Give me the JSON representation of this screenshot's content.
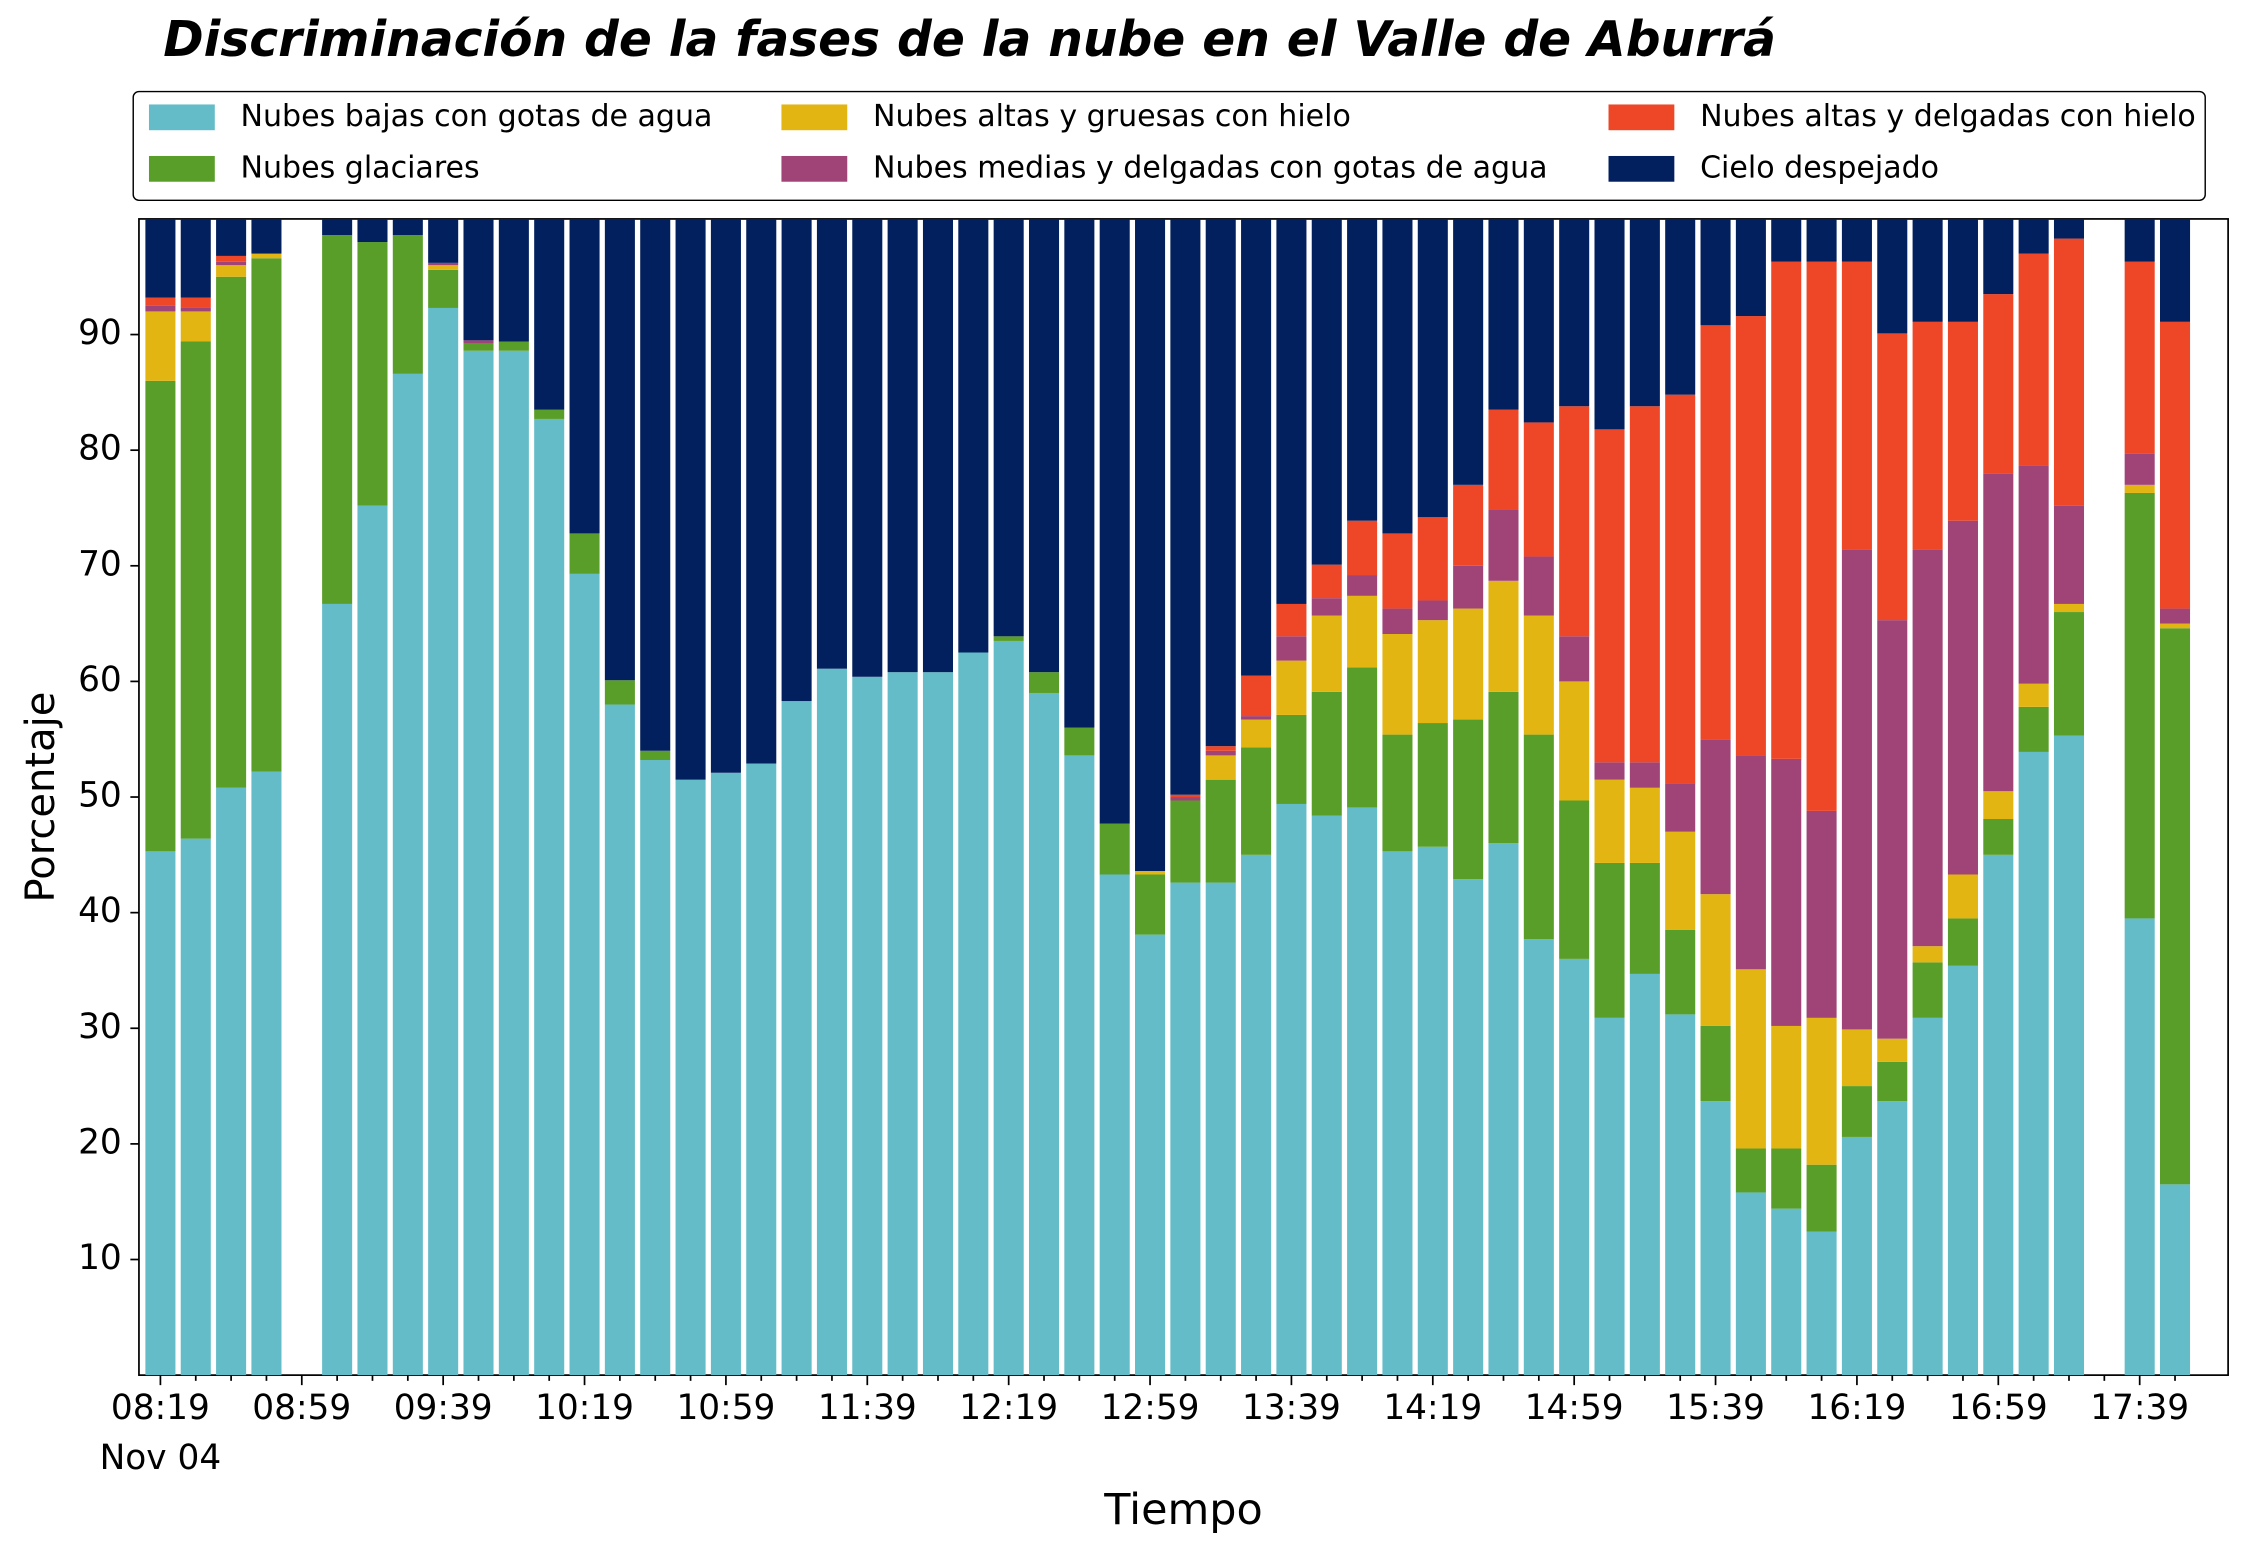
{
  "chart_data": {
    "type": "stacked_bar",
    "title": "Discriminación de la fases de la nube en el Valle de Aburrá",
    "xlabel": "Tiempo",
    "ylabel": "Porcentaje",
    "date_label": "Nov 04",
    "categories": [
      "08:19",
      null,
      null,
      null,
      "08:59",
      null,
      null,
      null,
      "09:39",
      null,
      null,
      null,
      "10:19",
      null,
      null,
      null,
      "10:59",
      null,
      null,
      null,
      "11:39",
      null,
      null,
      null,
      "12:19",
      null,
      null,
      null,
      "12:59",
      null,
      null,
      null,
      "13:39",
      null,
      null,
      null,
      "14:19",
      null,
      null,
      null,
      "14:59",
      null,
      null,
      null,
      "15:39",
      null,
      null,
      null,
      "16:19",
      null,
      null,
      null,
      "16:59",
      null,
      null,
      null,
      "17:39",
      null
    ],
    "ylim": [
      0,
      100
    ],
    "yticks": [
      10,
      20,
      30,
      40,
      50,
      60,
      70,
      80,
      90
    ],
    "series": [
      {
        "name": "Nubes bajas con gotas de agua",
        "color": "#63bcc8",
        "values": [
          45.3,
          46.4,
          50.8,
          52.2,
          null,
          66.7,
          75.2,
          86.6,
          92.3,
          88.6,
          88.6,
          82.7,
          69.3,
          58,
          53.2,
          51.5,
          52.1,
          52.9,
          58.3,
          61.1,
          60.4,
          60.8,
          60.8,
          62.5,
          63.5,
          59,
          53.6,
          43.3,
          38.1,
          42.6,
          42.6,
          45,
          49.4,
          48.4,
          49.1,
          45.3,
          45.7,
          42.9,
          46,
          37.7,
          36,
          30.9,
          34.7,
          31.2,
          23.7,
          15.8,
          14.4,
          12.4,
          20.6,
          23.7,
          30.9,
          35.4,
          45,
          53.9,
          55.3,
          null,
          39.5,
          16.5
        ]
      },
      {
        "name": "Nubes glaciares",
        "color": "#5a9e2a",
        "values": [
          40.7,
          43,
          44.2,
          44.4,
          null,
          31.9,
          22.8,
          12,
          3.3,
          0.6,
          0.8,
          0.8,
          3.5,
          2.1,
          0.8,
          0,
          0,
          0,
          0,
          0,
          0,
          0,
          0,
          0,
          0.4,
          1.8,
          2.4,
          4.4,
          5.2,
          7.1,
          8.9,
          9.3,
          7.7,
          10.7,
          12.1,
          10.1,
          10.7,
          13.8,
          13.1,
          17.7,
          13.7,
          13.4,
          9.6,
          7.3,
          6.5,
          3.8,
          5.2,
          5.8,
          4.4,
          3.4,
          4.8,
          4.1,
          3.1,
          3.9,
          10.7,
          null,
          36.8,
          48.1
        ]
      },
      {
        "name": "Nubes altas y gruesas con hielo",
        "color": "#e3b513",
        "values": [
          6,
          2.6,
          1,
          0.4,
          null,
          0,
          0,
          0,
          0.4,
          0,
          0,
          0,
          0,
          0,
          0,
          0,
          0,
          0,
          0,
          0,
          0,
          0,
          0,
          0,
          0,
          0,
          0,
          0,
          0.3,
          0,
          2.1,
          2.4,
          4.7,
          6.6,
          6.2,
          8.7,
          8.9,
          9.6,
          9.6,
          10.3,
          10.3,
          7.2,
          6.5,
          8.5,
          11.4,
          15.5,
          10.6,
          12.7,
          4.9,
          2,
          1.4,
          3.8,
          2.4,
          2,
          0.7,
          null,
          0.7,
          0.4
        ]
      },
      {
        "name": "Nubes medias y delgadas con gotas de agua",
        "color": "#a04478",
        "values": [
          0.5,
          0.3,
          0.3,
          0,
          null,
          0,
          0,
          0,
          0.2,
          0.3,
          0,
          0,
          0,
          0,
          0,
          0,
          0,
          0,
          0,
          0,
          0,
          0,
          0,
          0,
          0,
          0,
          0,
          0,
          0,
          0.3,
          0.4,
          0.3,
          2.1,
          1.5,
          1.8,
          2.2,
          1.7,
          3.7,
          6.2,
          5.1,
          3.9,
          1.5,
          2.2,
          4.2,
          13.4,
          18.5,
          23.1,
          17.9,
          41.5,
          36.2,
          34.3,
          30.6,
          27.5,
          18.9,
          8.5,
          null,
          2.7,
          1.3
        ]
      },
      {
        "name": "Nubes altas y delgadas con hielo",
        "color": "#ee4728",
        "values": [
          0.7,
          0.9,
          0.5,
          0,
          null,
          0,
          0,
          0,
          0,
          0,
          0,
          0,
          0,
          0,
          0,
          0,
          0,
          0,
          0,
          0,
          0,
          0,
          0,
          0,
          0,
          0,
          0,
          0,
          0,
          0.2,
          0.4,
          3.5,
          2.8,
          2.9,
          4.7,
          6.5,
          7.2,
          7,
          8.6,
          11.6,
          19.9,
          28.8,
          30.8,
          33.6,
          35.8,
          38,
          43,
          47.5,
          24.9,
          24.8,
          19.7,
          17.2,
          15.5,
          18.3,
          23.1,
          null,
          16.6,
          24.8
        ]
      },
      {
        "name": "Cielo despejado",
        "color": "#03205e",
        "values": [
          6.8,
          6.8,
          3.2,
          3,
          null,
          1.4,
          2,
          1.4,
          3.8,
          10.5,
          10.6,
          16.5,
          27.2,
          39.9,
          46,
          48.5,
          47.9,
          47.1,
          41.7,
          38.9,
          39.6,
          39.2,
          39.2,
          37.5,
          36.1,
          39.2,
          44,
          52.3,
          56.4,
          49.8,
          45.6,
          39.5,
          33.3,
          29.9,
          26.1,
          27.2,
          25.8,
          23,
          16.5,
          17.6,
          16.2,
          18.2,
          16.2,
          15.2,
          9.2,
          8.4,
          3.7,
          3.7,
          3.7,
          9.9,
          8.9,
          8.9,
          6.5,
          3,
          1.7,
          null,
          3.7,
          8.9
        ]
      }
    ],
    "legend": "top-outside",
    "legend_columns": 3
  }
}
